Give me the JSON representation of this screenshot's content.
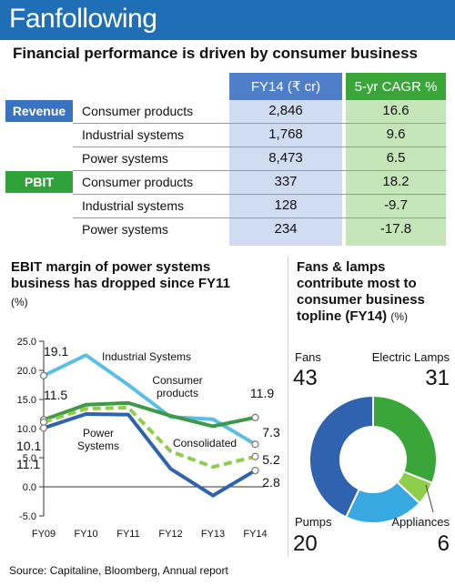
{
  "header": {
    "title": "Fanfollowing"
  },
  "table": {
    "title": "Financial performance is driven by consumer business",
    "col_fy": "FY14 (₹ cr)",
    "col_cagr": "5-yr CAGR %",
    "group_revenue": "Revenue",
    "group_pbit": "PBIT",
    "rows": [
      {
        "segment": "Consumer products",
        "fy14": "2,846",
        "cagr": "16.6"
      },
      {
        "segment": "Industrial systems",
        "fy14": "1,768",
        "cagr": "9.6"
      },
      {
        "segment": "Power systems",
        "fy14": "8,473",
        "cagr": "6.5"
      },
      {
        "segment": "Consumer products",
        "fy14": "337",
        "cagr": "18.2"
      },
      {
        "segment": "Industrial systems",
        "fy14": "128",
        "cagr": "-9.7"
      },
      {
        "segment": "Power systems",
        "fy14": "234",
        "cagr": "-17.8"
      }
    ]
  },
  "colors": {
    "banner": "#1f6fb7",
    "fy_header": "#4f7fc9",
    "cagr_header": "#3aa63a",
    "fy_fill": "#cfdcf1",
    "cagr_fill": "#c4e6b8"
  },
  "chart_data": [
    {
      "type": "line",
      "title_line1": "EBIT margin of power systems",
      "title_line2": "business has dropped since FY11",
      "unit": "(%)",
      "categories": [
        "FY09",
        "FY10",
        "FY11",
        "FY12",
        "FY13",
        "FY14"
      ],
      "ylim": [
        -5,
        25
      ],
      "yticks": [
        "25.0",
        "20.0",
        "15.0",
        "10.0",
        "5.0",
        "0.0",
        "-5.0"
      ],
      "series": [
        {
          "name": "Industrial Systems",
          "color": "#5bbfe3",
          "values": [
            19.1,
            22.6,
            17.5,
            12.0,
            11.6,
            7.3
          ]
        },
        {
          "name": "Consumer products",
          "name_line1": "Consumer",
          "name_line2": "products",
          "color": "#3e9a46",
          "values": [
            11.5,
            14.1,
            14.4,
            12.2,
            10.4,
            11.9
          ]
        },
        {
          "name": "Consolidated",
          "color": "#8fce4a",
          "dashed": true,
          "values": [
            11.1,
            13.4,
            13.6,
            6.1,
            3.4,
            5.2
          ]
        },
        {
          "name": "Power Systems",
          "name_line1": "Power",
          "name_line2": "Systems",
          "color": "#2f63b0",
          "values": [
            10.1,
            12.5,
            12.4,
            3.1,
            -1.5,
            2.8
          ]
        }
      ],
      "start_labels": [
        "19.1",
        "11.5",
        "10.1",
        "11.1"
      ],
      "end_labels": [
        "11.9",
        "7.3",
        "5.2",
        "2.8"
      ]
    },
    {
      "type": "pie",
      "donut": true,
      "title_lines": [
        "Fans & lamps",
        "contribute most to",
        "consumer business",
        "topline (FY14)"
      ],
      "unit": "(%)",
      "slices": [
        {
          "label": "Electric Lamps",
          "value": 31,
          "color": "#3aa63a"
        },
        {
          "label": "Appliances",
          "value": 6,
          "color": "#8fce4a"
        },
        {
          "label": "Pumps",
          "value": 20,
          "color": "#38a9e0"
        },
        {
          "label": "Fans",
          "value": 43,
          "color": "#2f63b0"
        }
      ],
      "value_labels": {
        "Fans": "43",
        "Electric Lamps": "31",
        "Pumps": "20",
        "Appliances": "6"
      }
    }
  ],
  "source": "Source: Capitaline, Bloomberg, Annual report"
}
